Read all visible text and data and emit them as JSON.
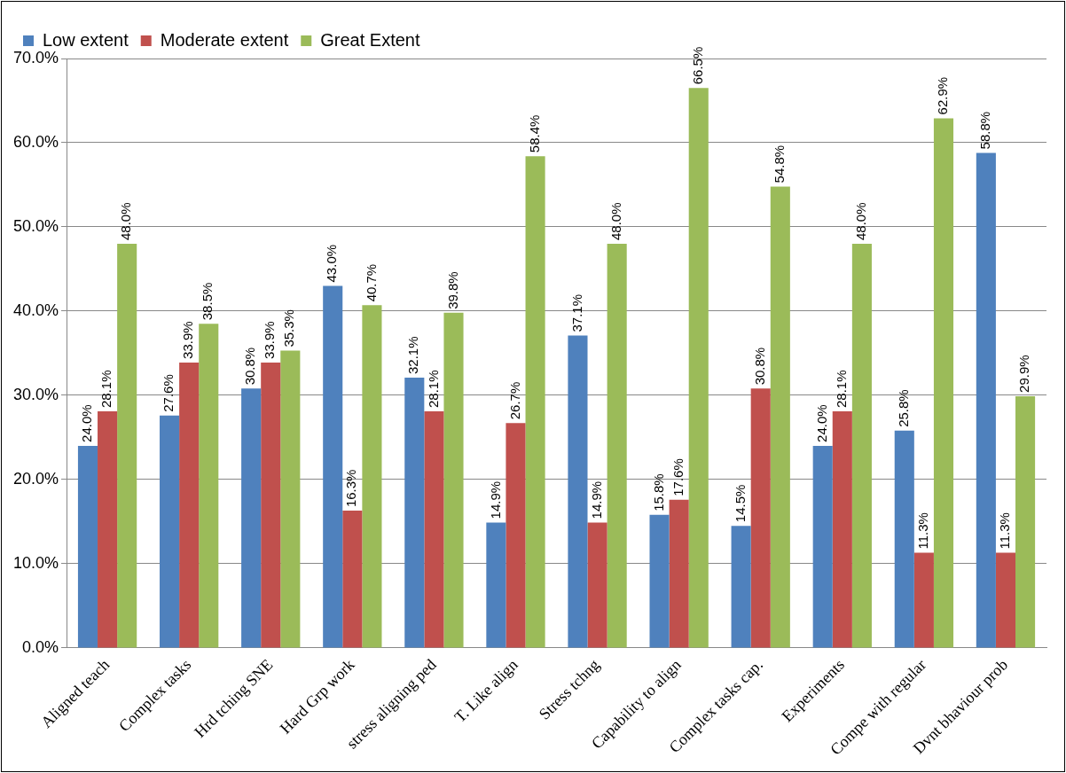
{
  "chart_data": {
    "type": "bar",
    "categories": [
      "Aligned teach",
      "Complex tasks",
      "Hrd tching SNE",
      "Hard Grp work",
      "stress aligning ped",
      "T. Like align",
      "Stress tchng",
      "Capability to align",
      "Complex tasks cap.",
      "Experiments",
      "Compe with regular",
      "Dvnt bhaviour prob"
    ],
    "series": [
      {
        "name": "Low extent",
        "color": "#4f81bd",
        "values": [
          24.0,
          27.6,
          30.8,
          43.0,
          32.1,
          14.9,
          37.1,
          15.8,
          14.5,
          24.0,
          25.8,
          58.8
        ],
        "value_labels": [
          "24.0%",
          "27.6%",
          "30.8%",
          "43.0%",
          "32.1%",
          "14.9%",
          "37.1%",
          "15.8%",
          "14.5%",
          "24.0%",
          "25.8%",
          "58.8%"
        ]
      },
      {
        "name": "Moderate extent",
        "color": "#c0504d",
        "values": [
          28.1,
          33.9,
          33.9,
          16.3,
          28.1,
          26.7,
          14.9,
          17.6,
          30.8,
          28.1,
          11.3,
          11.3
        ],
        "value_labels": [
          "28.1%",
          "33.9%",
          "33.9%",
          "16.3%",
          "28.1%",
          "26.7%",
          "14.9%",
          "17.6%",
          "30.8%",
          "28.1%",
          "11.3%",
          "11.3%"
        ]
      },
      {
        "name": "Great Extent",
        "color": "#9bbb59",
        "values": [
          48.0,
          38.5,
          35.3,
          40.7,
          39.8,
          58.4,
          48.0,
          66.5,
          54.8,
          48.0,
          62.9,
          29.9
        ],
        "value_labels": [
          "48.0%",
          "38.5%",
          "35.3%",
          "40.7%",
          "39.8%",
          "58.4%",
          "48.0%",
          "66.5%",
          "54.8%",
          "48.0%",
          "62.9%",
          "29.9%"
        ]
      }
    ],
    "ylim": [
      0,
      70
    ],
    "yticks": [
      {
        "value": 0,
        "label": "0.0%"
      },
      {
        "value": 10,
        "label": "10.0%"
      },
      {
        "value": 20,
        "label": "20.0%"
      },
      {
        "value": 30,
        "label": "30.0%"
      },
      {
        "value": 40,
        "label": "40.0%"
      },
      {
        "value": 50,
        "label": "50.0%"
      },
      {
        "value": 60,
        "label": "60.0%"
      },
      {
        "value": 70,
        "label": "70.0%"
      }
    ],
    "grid": "y",
    "legend": "top left"
  }
}
